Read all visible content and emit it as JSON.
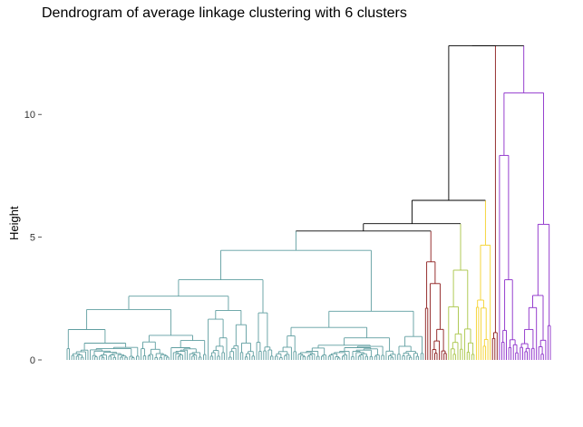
{
  "chart_data": {
    "type": "dendrogram",
    "title": "Dendrogram of average linkage clustering with 6 clusters",
    "xlabel": "",
    "ylabel": "Height",
    "ylim": [
      0,
      13
    ],
    "yticks": [
      0,
      5,
      10
    ],
    "grid": false,
    "legend": "none",
    "leaf_count": 210,
    "clusters": [
      {
        "id": 1,
        "color": "#5F9EA0",
        "first_leaf": 0,
        "last_leaf": 154,
        "max_height": 5.25
      },
      {
        "id": 2,
        "color": "#8B1A1A",
        "first_leaf": 155,
        "last_leaf": 164,
        "max_height": 4.7
      },
      {
        "id": 3,
        "color": "#A8C545",
        "first_leaf": 165,
        "last_leaf": 176,
        "max_height": 4.3
      },
      {
        "id": 4,
        "color": "#F5D22A",
        "first_leaf": 177,
        "last_leaf": 183,
        "max_height": 5.5
      },
      {
        "id": 5,
        "color": "#8B1A1A",
        "first_leaf": 184,
        "last_leaf": 186,
        "max_height": 2.2
      },
      {
        "id": 6,
        "color": "#8B2BC9",
        "first_leaf": 187,
        "last_leaf": 209,
        "max_height": 12.8
      }
    ],
    "top_merges": [
      {
        "height": 12.8,
        "between": "clusters 1-5",
        "and": "cluster 6"
      },
      {
        "height": 6.5,
        "between": "clusters 1-4",
        "and": "cluster 5"
      },
      {
        "height": 5.55,
        "between": "clusters 1-3",
        "and": "cluster 4"
      },
      {
        "height": 5.25,
        "between": "clusters 1-2",
        "and": "cluster 3"
      }
    ],
    "colors": {
      "link": "#000000",
      "axis": "#333333"
    }
  }
}
